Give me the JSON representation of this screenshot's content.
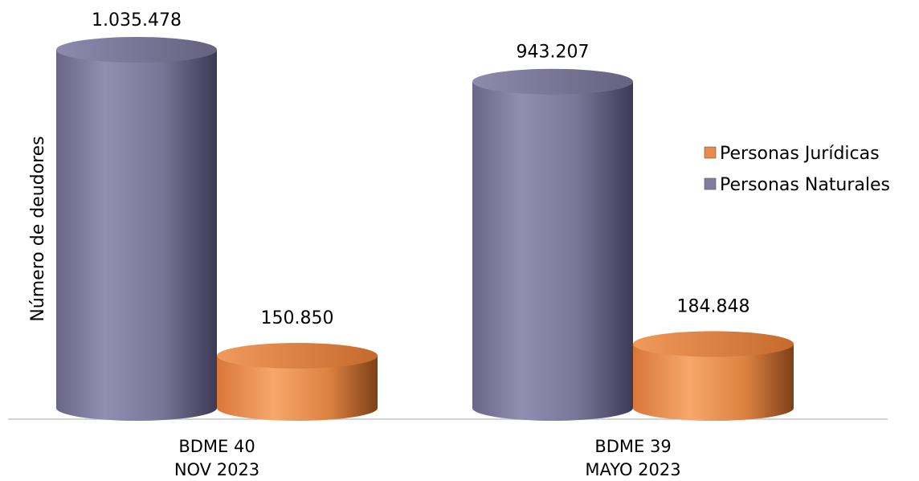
{
  "chart_data": {
    "type": "bar",
    "ylabel": "Número de deudores",
    "categories": [
      [
        "BDME 40",
        "NOV 2023"
      ],
      [
        "BDME 39",
        "MAYO 2023"
      ]
    ],
    "series": [
      {
        "name": "Personas Naturales",
        "values": [
          1035478,
          943207
        ],
        "labels": [
          "1.035.478",
          "943.207"
        ],
        "color": "#807c9f"
      },
      {
        "name": "Personas Jurídicas",
        "values": [
          150850,
          184848
        ],
        "labels": [
          "150.850",
          "184.848"
        ],
        "color": "#e88a4c"
      }
    ],
    "legend": {
      "position": "right",
      "order": [
        "Personas Jurídicas",
        "Personas Naturales"
      ]
    },
    "grid": false
  }
}
